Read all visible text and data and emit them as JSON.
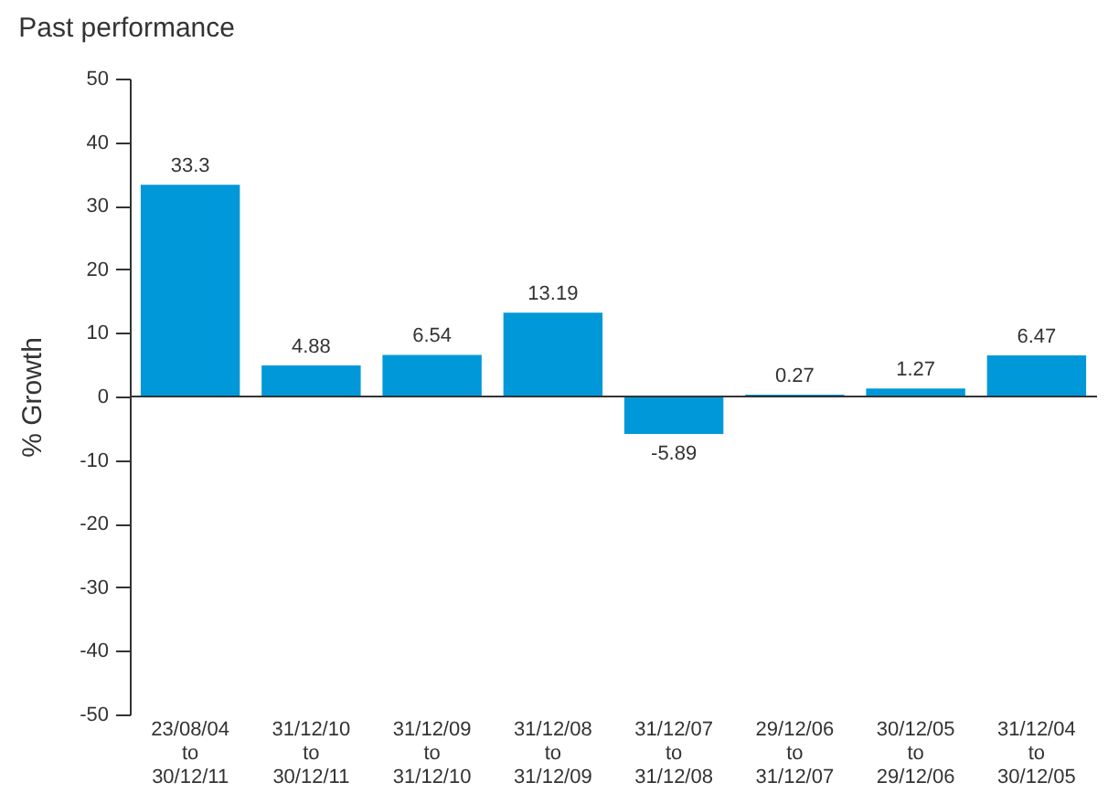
{
  "chart_data": {
    "type": "bar",
    "title": "Past performance",
    "ylabel": "% Growth",
    "categories": [
      "23/08/04 to 30/12/11",
      "31/12/10 to 30/12/11",
      "31/12/09 to 31/12/10",
      "31/12/08 to 31/12/09",
      "31/12/07 to 31/12/08",
      "29/12/06 to 31/12/07",
      "30/12/05 to 29/12/06",
      "31/12/04 to 30/12/05"
    ],
    "values": [
      33.3,
      4.88,
      6.54,
      13.19,
      -5.89,
      0.27,
      1.27,
      6.47
    ],
    "color": "#0098d8",
    "ylim": [
      -50,
      50
    ],
    "yticks": [
      -50,
      -40,
      -30,
      -20,
      -10,
      0,
      10,
      20,
      30,
      40,
      50
    ],
    "data_labels": true
  }
}
